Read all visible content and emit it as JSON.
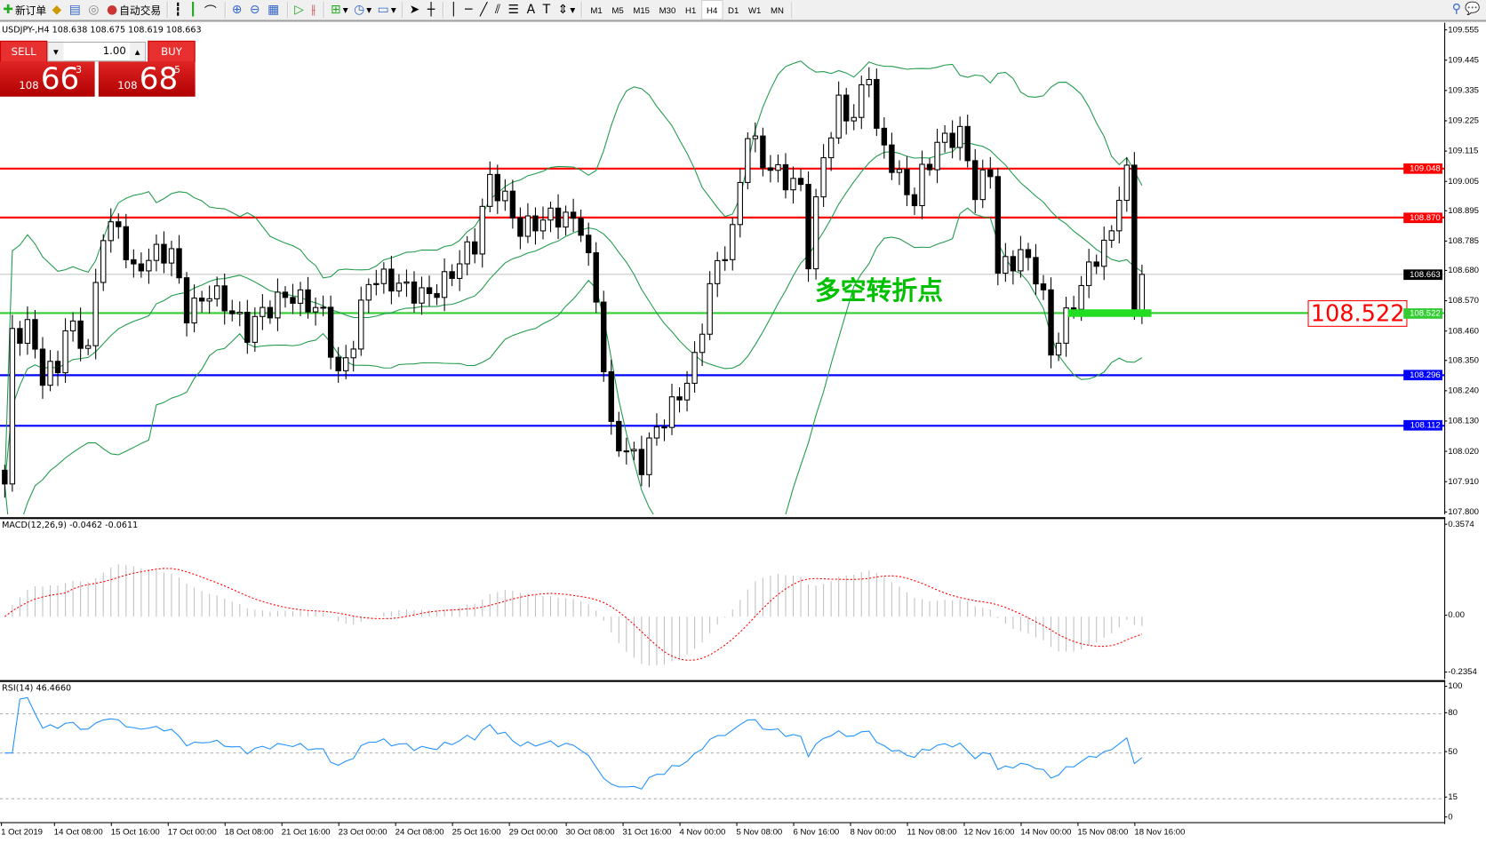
{
  "toolbar": {
    "new_order": "新订单",
    "auto_trading": "自动交易",
    "timeframes": [
      "M1",
      "M5",
      "M15",
      "M30",
      "H1",
      "H4",
      "D1",
      "W1",
      "MN"
    ],
    "active_timeframe": "H4"
  },
  "chart": {
    "symbol_line": "USDJPY-,H4  108.638 108.675 108.619 108.663",
    "trade": {
      "sell_label": "SELL",
      "buy_label": "BUY",
      "lot": "1.00",
      "sell_prefix": "108",
      "sell_big": "66",
      "sell_sup": "3",
      "buy_prefix": "108",
      "buy_big": "68",
      "buy_sup": "5"
    },
    "price_axis": [
      "109.555",
      "109.445",
      "109.335",
      "109.225",
      "109.115",
      "109.005",
      "108.895",
      "108.785",
      "108.680",
      "108.570",
      "108.460",
      "108.350",
      "108.240",
      "108.130",
      "108.020",
      "107.910",
      "107.800"
    ],
    "levels": [
      {
        "value": "109.048",
        "color": "#ff0000"
      },
      {
        "value": "108.870",
        "color": "#ff0000"
      },
      {
        "value": "108.663",
        "color": "#000000",
        "bid": true
      },
      {
        "value": "108.522",
        "color": "#33cc33"
      },
      {
        "value": "108.296",
        "color": "#0000ff"
      },
      {
        "value": "108.112",
        "color": "#0000ff"
      }
    ],
    "annotation": "多空转折点",
    "price_box": "108.522",
    "colors": {
      "bands": "#1f9a4a",
      "candle": "#000000",
      "macd_hist": "#c0c0c0",
      "macd_signal": "#ff0000",
      "rsi": "#1e90ff"
    },
    "price_path": [
      [
        0,
        107.9
      ],
      [
        1,
        108.45
      ],
      [
        3,
        108.5
      ],
      [
        5,
        108.3
      ],
      [
        7,
        108.3
      ],
      [
        8,
        108.45
      ],
      [
        11,
        108.4
      ],
      [
        13,
        108.85
      ],
      [
        15,
        108.85
      ],
      [
        17,
        108.65
      ],
      [
        19,
        108.7
      ],
      [
        22,
        108.75
      ],
      [
        24,
        108.55
      ],
      [
        27,
        108.6
      ],
      [
        30,
        108.5
      ],
      [
        32,
        108.45
      ],
      [
        34,
        108.55
      ],
      [
        37,
        108.6
      ],
      [
        39,
        108.55
      ],
      [
        42,
        108.5
      ],
      [
        44,
        108.3
      ],
      [
        46,
        108.45
      ],
      [
        48,
        108.65
      ],
      [
        52,
        108.6
      ],
      [
        55,
        108.6
      ],
      [
        58,
        108.65
      ],
      [
        62,
        108.75
      ],
      [
        64,
        109.0
      ],
      [
        66,
        108.95
      ],
      [
        68,
        108.85
      ],
      [
        72,
        108.85
      ],
      [
        76,
        108.85
      ],
      [
        78,
        108.6
      ],
      [
        80,
        108.1
      ],
      [
        82,
        108.0
      ],
      [
        84,
        107.95
      ],
      [
        86,
        108.1
      ],
      [
        88,
        108.2
      ],
      [
        91,
        108.35
      ],
      [
        93,
        108.6
      ],
      [
        96,
        108.8
      ],
      [
        98,
        109.2
      ],
      [
        100,
        109.1
      ],
      [
        103,
        109.0
      ],
      [
        105,
        108.95
      ],
      [
        106,
        108.7
      ],
      [
        108,
        109.1
      ],
      [
        110,
        109.3
      ],
      [
        112,
        109.25
      ],
      [
        114,
        109.4
      ],
      [
        115,
        109.15
      ],
      [
        118,
        109.0
      ],
      [
        120,
        108.95
      ],
      [
        121,
        109.05
      ],
      [
        123,
        109.15
      ],
      [
        126,
        109.15
      ],
      [
        128,
        108.95
      ],
      [
        130,
        109.05
      ],
      [
        131,
        108.7
      ],
      [
        134,
        108.75
      ],
      [
        136,
        108.65
      ],
      [
        137,
        108.55
      ],
      [
        138,
        108.35
      ],
      [
        140,
        108.5
      ],
      [
        142,
        108.65
      ],
      [
        144,
        108.75
      ],
      [
        146,
        108.8
      ],
      [
        147,
        108.95
      ],
      [
        148,
        109.0
      ],
      [
        149,
        108.52
      ],
      [
        150,
        108.663
      ]
    ]
  },
  "macd": {
    "label": "MACD(12,26,9) -0.0462 -0.0611",
    "axis": [
      "0.3574",
      "0.00",
      "-0.2354"
    ]
  },
  "rsi": {
    "label": "RSI(14) 46.4660",
    "axis": [
      "100",
      "80",
      "50",
      "15",
      "0"
    ]
  },
  "time_axis": [
    "1 Oct 2019",
    "14 Oct 08:00",
    "15 Oct 16:00",
    "17 Oct 00:00",
    "18 Oct 08:00",
    "21 Oct 16:00",
    "23 Oct 00:00",
    "24 Oct 08:00",
    "25 Oct 16:00",
    "29 Oct 00:00",
    "30 Oct 08:00",
    "31 Oct 16:00",
    "4 Nov 00:00",
    "5 Nov 08:00",
    "6 Nov 16:00",
    "8 Nov 00:00",
    "11 Nov 08:00",
    "12 Nov 16:00",
    "14 Nov 00:00",
    "15 Nov 08:00",
    "18 Nov 16:00"
  ]
}
